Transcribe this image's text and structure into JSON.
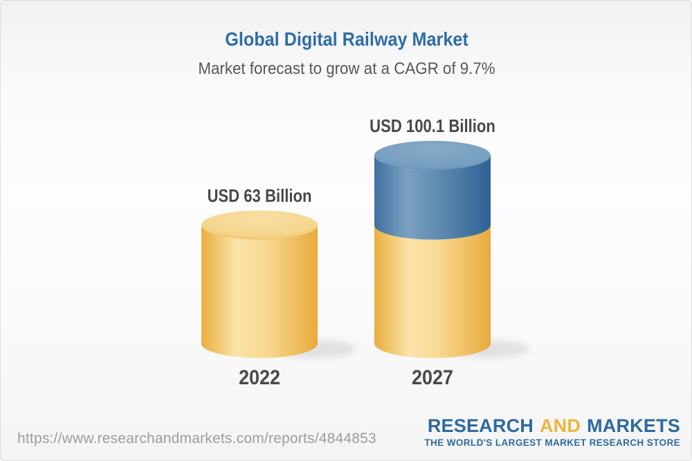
{
  "header": {
    "title": "Global Digital Railway Market",
    "subtitle": "Market forecast to grow at a CAGR of 9.7%"
  },
  "chart_data": {
    "type": "bar",
    "subtype": "3d-cylinder",
    "categories": [
      "2022",
      "2027"
    ],
    "values": [
      63,
      100.1
    ],
    "unit": "USD Billion",
    "value_labels": [
      "USD 63 Billion",
      "USD 100.1 Billion"
    ],
    "title": "Global Digital Railway Market",
    "subtitle": "Market forecast to grow at a CAGR of 9.7%",
    "cagr_percent": 9.7,
    "legend": "none",
    "axes": "none",
    "grid": false,
    "colors": {
      "base_segment_yellow": "#f2c468",
      "growth_segment_blue": "#4d7ba8"
    },
    "notes": "2027 cylinder shows the 2022 base value in yellow with the incremental growth portion stacked in blue on top"
  },
  "footer": {
    "url": "https://www.researchandmarkets.com/reports/4844853",
    "logo": {
      "research": "RESEARCH",
      "and": "AND",
      "markets": "MARKETS",
      "tagline": "THE WORLD'S LARGEST MARKET RESEARCH STORE"
    }
  },
  "colors": {
    "title_blue": "#2d6da7",
    "subtitle_gray": "#57575a",
    "label_gray": "#48484a",
    "url_gray": "#9c9c9c",
    "logo_blue": "#2d6a9e",
    "logo_gold": "#f0b43c",
    "background_top": "#f1f1f2",
    "background_mid": "#fdfdfe"
  }
}
